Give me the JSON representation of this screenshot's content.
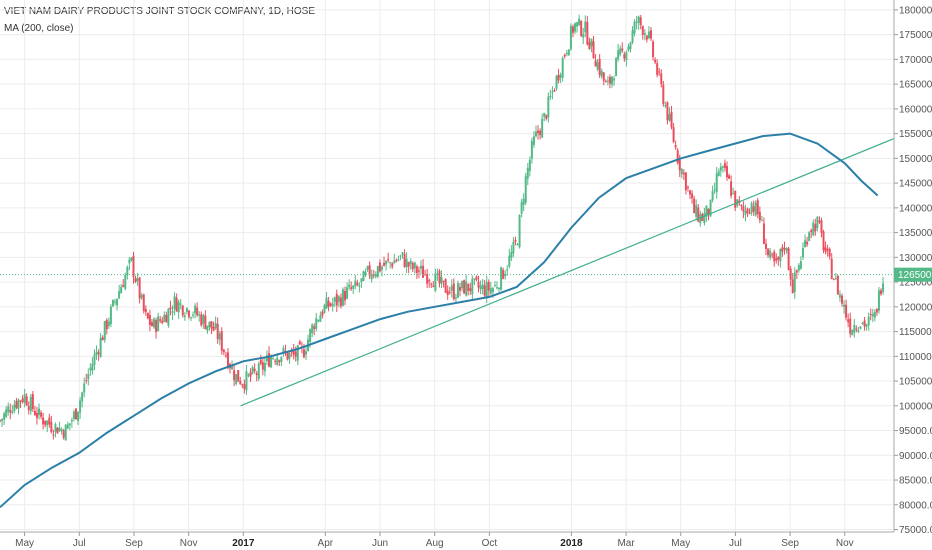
{
  "header": {
    "title": "VIET NAM DAIRY PRODUCTS JOINT STOCK COMPANY, 1D, HOSE",
    "indicator": "MA (200, close)"
  },
  "colors": {
    "up": "#53b987",
    "down": "#eb4d5c",
    "ma": "#2b7fa8",
    "trendline": "#3fae8c",
    "price_line": "#53b987",
    "grid": "#ececec"
  },
  "chart_data": {
    "type": "candlestick",
    "title": "VIET NAM DAIRY PRODUCTS JOINT STOCK COMPANY, 1D, HOSE",
    "y_ticks": [
      75000,
      80000,
      85000,
      90000,
      95000,
      100000,
      105000,
      110000,
      115000,
      120000,
      125000,
      130000,
      135000,
      140000,
      145000,
      150000,
      155000,
      160000,
      165000,
      170000,
      175000,
      180000
    ],
    "ylim": [
      74500,
      182000
    ],
    "x_ticks": [
      {
        "label": "May",
        "t": 1,
        "bold": false
      },
      {
        "label": "Jul",
        "t": 3,
        "bold": false
      },
      {
        "label": "Sep",
        "t": 5,
        "bold": false
      },
      {
        "label": "Nov",
        "t": 7,
        "bold": false
      },
      {
        "label": "2017",
        "t": 9,
        "bold": true
      },
      {
        "label": "Apr",
        "t": 12,
        "bold": false
      },
      {
        "label": "Jun",
        "t": 14,
        "bold": false
      },
      {
        "label": "Aug",
        "t": 16,
        "bold": false
      },
      {
        "label": "Oct",
        "t": 18,
        "bold": false
      },
      {
        "label": "2018",
        "t": 21,
        "bold": true
      },
      {
        "label": "Mar",
        "t": 23,
        "bold": false
      },
      {
        "label": "May",
        "t": 25,
        "bold": false
      },
      {
        "label": "Jul",
        "t": 27,
        "bold": false
      },
      {
        "label": "Sep",
        "t": 29,
        "bold": false
      },
      {
        "label": "Nov",
        "t": 31,
        "bold": false
      }
    ],
    "xlim": [
      0.1,
      32.8
    ],
    "last_price": 126500,
    "last_price_label": "126500.0",
    "close_path": [
      [
        0.1,
        97000
      ],
      [
        0.5,
        100000
      ],
      [
        1.0,
        102000
      ],
      [
        1.5,
        98000
      ],
      [
        2.0,
        96000
      ],
      [
        2.5,
        95000
      ],
      [
        2.9,
        99000
      ],
      [
        3.3,
        106000
      ],
      [
        3.7,
        112000
      ],
      [
        4.1,
        118000
      ],
      [
        4.5,
        124000
      ],
      [
        4.9,
        129000
      ],
      [
        5.1,
        125000
      ],
      [
        5.4,
        118000
      ],
      [
        5.7,
        116000
      ],
      [
        6.1,
        118000
      ],
      [
        6.5,
        121000
      ],
      [
        6.8,
        120000
      ],
      [
        7.2,
        119000
      ],
      [
        7.6,
        117000
      ],
      [
        8.0,
        115000
      ],
      [
        8.4,
        110000
      ],
      [
        8.7,
        106000
      ],
      [
        9.0,
        105000
      ],
      [
        9.3,
        106000
      ],
      [
        9.6,
        107000
      ],
      [
        10.0,
        110000
      ],
      [
        10.4,
        110500
      ],
      [
        10.8,
        110000
      ],
      [
        11.2,
        111000
      ],
      [
        11.6,
        117000
      ],
      [
        12.0,
        120000
      ],
      [
        12.4,
        121000
      ],
      [
        12.8,
        123000
      ],
      [
        13.2,
        124000
      ],
      [
        13.6,
        127000
      ],
      [
        14.0,
        128000
      ],
      [
        14.4,
        129000
      ],
      [
        14.8,
        130000
      ],
      [
        15.1,
        128000
      ],
      [
        15.5,
        127000
      ],
      [
        15.9,
        126000
      ],
      [
        16.3,
        124000
      ],
      [
        16.7,
        123000
      ],
      [
        17.1,
        124000
      ],
      [
        17.5,
        124000
      ],
      [
        17.9,
        123500
      ],
      [
        18.2,
        124000
      ],
      [
        18.6,
        128000
      ],
      [
        19.0,
        133000
      ],
      [
        19.3,
        145000
      ],
      [
        19.6,
        153000
      ],
      [
        20.0,
        158000
      ],
      [
        20.4,
        165000
      ],
      [
        20.8,
        172000
      ],
      [
        21.1,
        177000
      ],
      [
        21.5,
        176000
      ],
      [
        21.9,
        170000
      ],
      [
        22.3,
        164000
      ],
      [
        22.7,
        170000
      ],
      [
        23.1,
        173000
      ],
      [
        23.4,
        178000
      ],
      [
        23.8,
        175000
      ],
      [
        24.2,
        166000
      ],
      [
        24.6,
        157000
      ],
      [
        24.9,
        150000
      ],
      [
        25.2,
        145000
      ],
      [
        25.5,
        139000
      ],
      [
        25.8,
        138000
      ],
      [
        26.1,
        140000
      ],
      [
        26.4,
        148000
      ],
      [
        26.7,
        146000
      ],
      [
        27.0,
        141000
      ],
      [
        27.3,
        139000
      ],
      [
        27.6,
        141000
      ],
      [
        27.9,
        138000
      ],
      [
        28.2,
        130000
      ],
      [
        28.5,
        128000
      ],
      [
        28.8,
        133000
      ],
      [
        29.1,
        124000
      ],
      [
        29.4,
        130000
      ],
      [
        29.7,
        136000
      ],
      [
        30.0,
        137000
      ],
      [
        30.3,
        131000
      ],
      [
        30.6,
        126000
      ],
      [
        30.9,
        121000
      ],
      [
        31.2,
        116000
      ],
      [
        31.5,
        117000
      ],
      [
        31.8,
        116500
      ],
      [
        32.1,
        118000
      ],
      [
        32.4,
        126500
      ]
    ],
    "ma_200": [
      [
        0.1,
        79500
      ],
      [
        1.0,
        84000
      ],
      [
        2.0,
        87500
      ],
      [
        3.0,
        90500
      ],
      [
        4.0,
        94500
      ],
      [
        5.0,
        98000
      ],
      [
        6.0,
        101500
      ],
      [
        7.0,
        104500
      ],
      [
        8.0,
        107000
      ],
      [
        9.0,
        109000
      ],
      [
        10.0,
        110000
      ],
      [
        11.0,
        111500
      ],
      [
        12.0,
        113500
      ],
      [
        13.0,
        115500
      ],
      [
        14.0,
        117500
      ],
      [
        15.0,
        119000
      ],
      [
        16.0,
        120000
      ],
      [
        17.0,
        121000
      ],
      [
        18.0,
        122000
      ],
      [
        19.0,
        124000
      ],
      [
        20.0,
        129000
      ],
      [
        21.0,
        136000
      ],
      [
        22.0,
        142000
      ],
      [
        23.0,
        146000
      ],
      [
        24.0,
        148000
      ],
      [
        25.0,
        150000
      ],
      [
        26.0,
        151500
      ],
      [
        27.0,
        153000
      ],
      [
        28.0,
        154500
      ],
      [
        29.0,
        155000
      ],
      [
        30.0,
        153000
      ],
      [
        31.0,
        149000
      ],
      [
        31.6,
        145500
      ],
      [
        32.2,
        142500
      ]
    ],
    "trendline": [
      [
        8.9,
        100000
      ],
      [
        32.8,
        154000
      ]
    ]
  }
}
